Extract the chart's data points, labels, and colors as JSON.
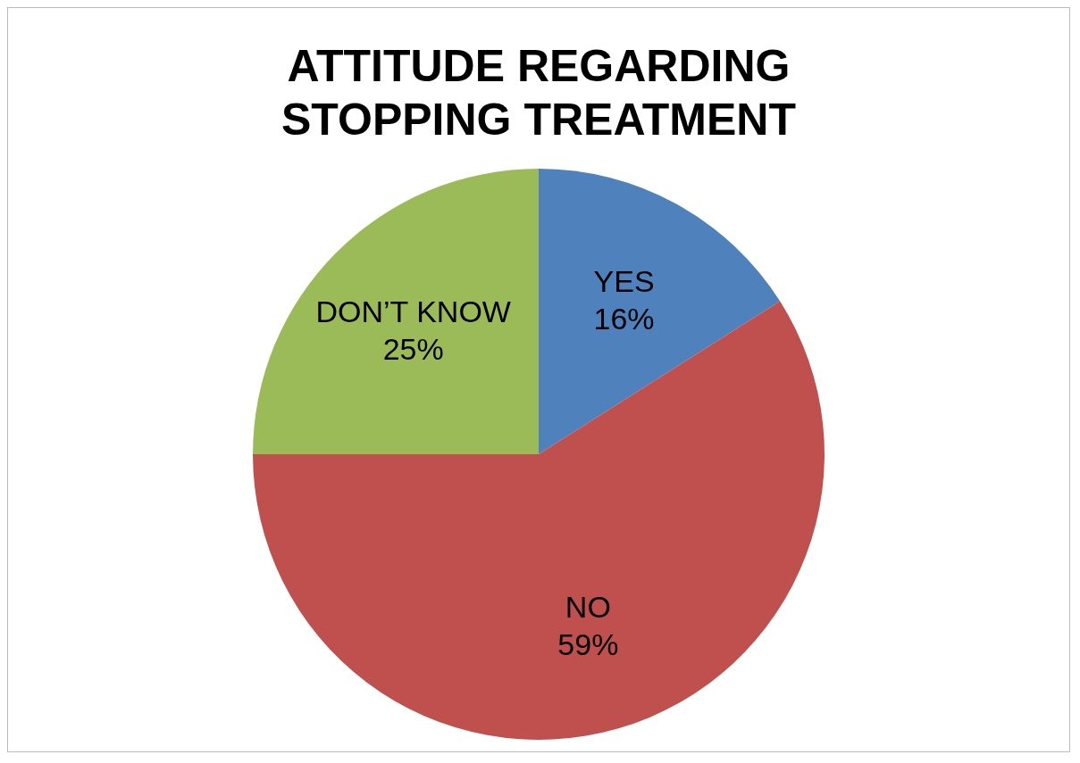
{
  "chart_data": {
    "type": "pie",
    "title": "ATTITUDE REGARDING STOPPING TREATMENT",
    "categories": [
      "YES",
      "NO",
      "DON’T KNOW"
    ],
    "values": [
      16,
      59,
      25
    ],
    "colors": [
      "#4f81bd",
      "#c0504d",
      "#9bbb59"
    ],
    "value_labels": [
      "16%",
      "59%",
      "25%"
    ]
  }
}
